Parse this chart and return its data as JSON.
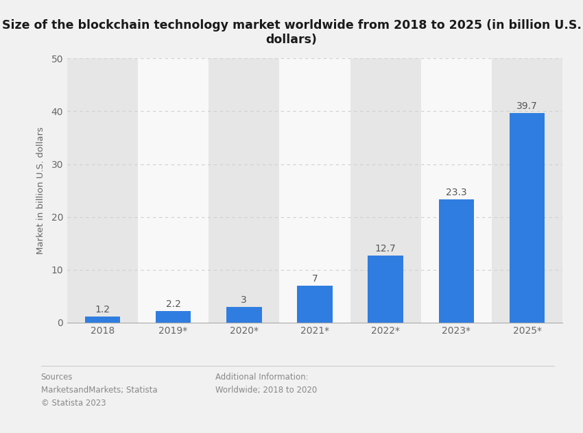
{
  "title": "Size of the blockchain technology market worldwide from 2018 to 2025 (in billion U.S.\ndollars)",
  "categories": [
    "2018",
    "2019*",
    "2020*",
    "2021*",
    "2022*",
    "2023*",
    "2025*"
  ],
  "values": [
    1.2,
    2.2,
    3.0,
    7.0,
    12.7,
    23.3,
    39.7
  ],
  "bar_color": "#2f7de0",
  "ylabel": "Market in billion U.S. dollars",
  "ylim": [
    0,
    50
  ],
  "yticks": [
    0,
    10,
    20,
    30,
    40,
    50
  ],
  "bg_color": "#f1f1f1",
  "plot_bg_color": "#f1f1f1",
  "title_fontsize": 12.5,
  "label_fontsize": 9.5,
  "tick_fontsize": 10,
  "value_label_fontsize": 10,
  "sources_text": "Sources\nMarketsandMarkets; Statista\n© Statista 2023",
  "additional_text": "Additional Information:\nWorldwide; 2018 to 2020",
  "footer_fontsize": 8.5,
  "grid_color": "#d0d0d0",
  "alternating_bg_colors": [
    "#e6e6e6",
    "#f8f8f8"
  ]
}
